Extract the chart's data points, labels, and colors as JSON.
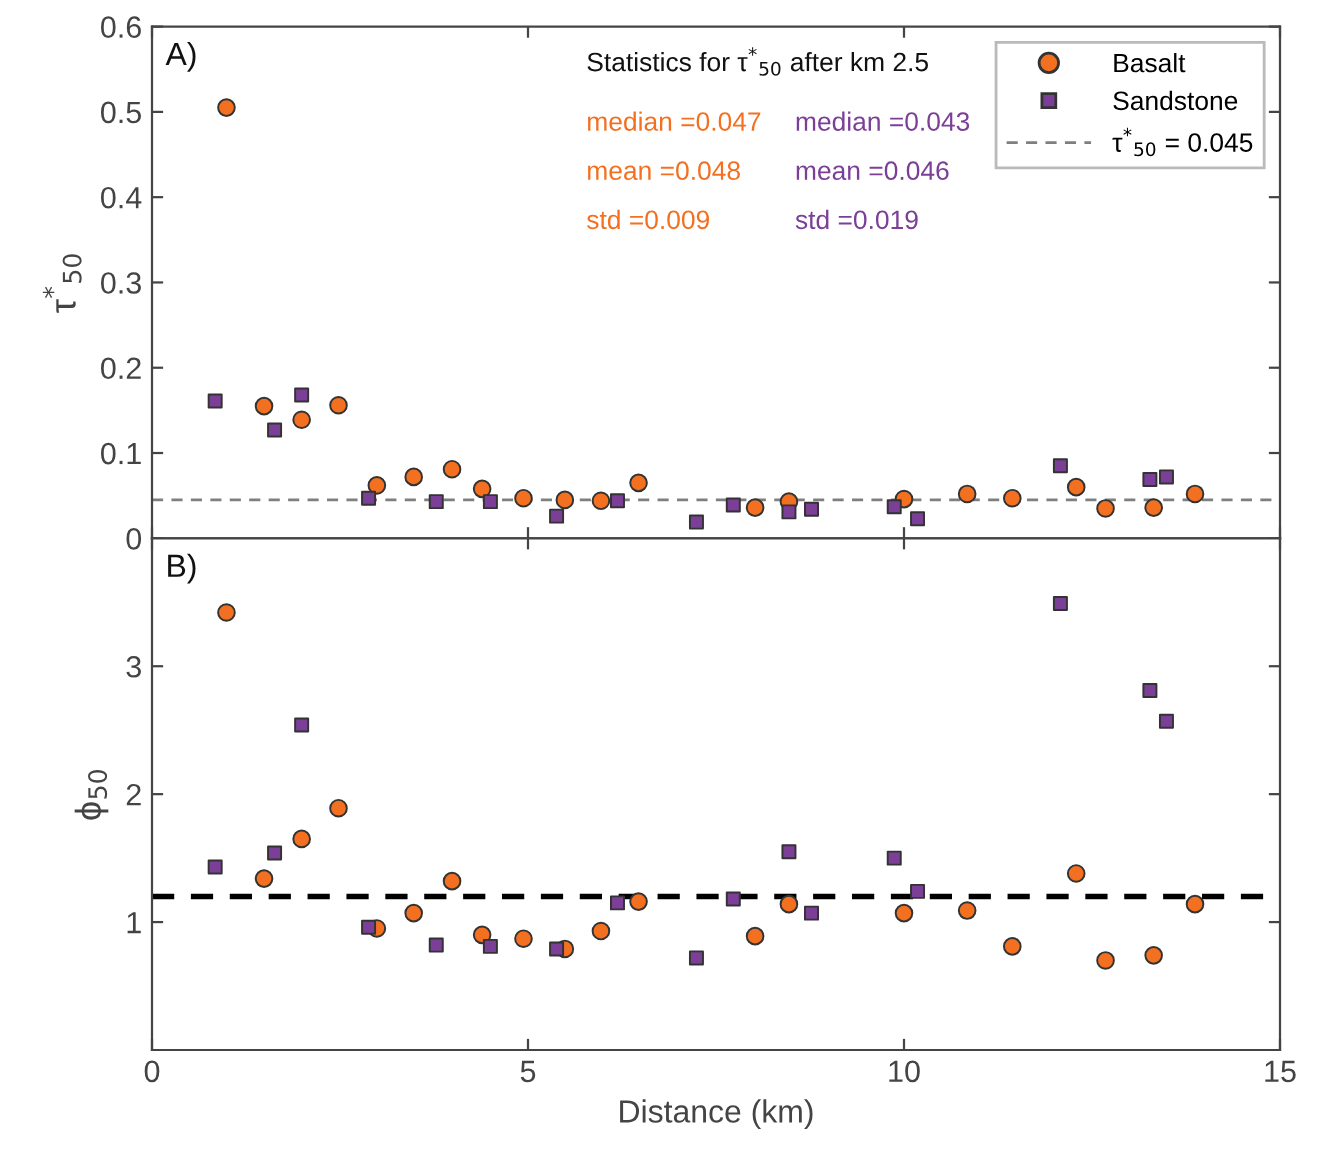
{
  "chart_data": [
    {
      "type": "scatter",
      "ylabel": "τ$^{*}$$_{50}$",
      "xlim": [
        0,
        15
      ],
      "xticks": [
        {
          "value": 0,
          "label": null
        },
        {
          "value": 5,
          "label": null
        },
        {
          "value": 10,
          "label": null
        },
        {
          "value": 15,
          "label": null
        }
      ],
      "ylim": [
        0,
        0.6
      ],
      "yticks": [
        0,
        0.1,
        0.2,
        0.3,
        0.4,
        0.5,
        0.6
      ],
      "tick_labels": "y",
      "legend": "top right",
      "grid": false,
      "annotations": [
        "A)",
        "Statistics for τ$^{*}$$_{50}$ after km 2.5",
        "median =0.047",
        "mean =0.048",
        "std =0.009",
        "median =0.043",
        "mean =0.046",
        "std =0.019"
      ],
      "ref_lines": [
        {
          "axis": "y",
          "value": 0.045,
          "label": "τ$^{*}$$_{50}$ = 0.045",
          "color": "#7f7f7f",
          "line_style": "dashed"
        }
      ],
      "series": [
        {
          "name": "Basalt",
          "color": "#f37021",
          "marker": "circle",
          "x": [
            0.99,
            1.49,
            1.99,
            2.48,
            2.99,
            3.48,
            3.99,
            4.39,
            4.94,
            5.49,
            5.97,
            6.47,
            8.02,
            8.47,
            10.0,
            10.84,
            11.44,
            12.29,
            12.68,
            13.32,
            13.87
          ],
          "values": [
            0.505,
            0.155,
            0.139,
            0.156,
            0.062,
            0.072,
            0.081,
            0.058,
            0.047,
            0.045,
            0.044,
            0.065,
            0.036,
            0.043,
            0.046,
            0.052,
            0.047,
            0.06,
            0.035,
            0.036,
            0.052
          ]
        },
        {
          "name": "Sandstone",
          "color": "#7b3f98",
          "marker": "square",
          "x": [
            0.84,
            1.63,
            1.99,
            2.88,
            3.78,
            4.5,
            5.38,
            6.19,
            7.24,
            7.73,
            8.47,
            8.77,
            9.87,
            10.18,
            12.08,
            13.27,
            13.49
          ],
          "values": [
            0.161,
            0.127,
            0.168,
            0.047,
            0.043,
            0.043,
            0.026,
            0.044,
            0.019,
            0.039,
            0.031,
            0.034,
            0.037,
            0.023,
            0.085,
            0.069,
            0.072
          ]
        }
      ]
    },
    {
      "type": "scatter",
      "xlabel": "Distance (km)",
      "ylabel": "ϕ$_{50}$",
      "xlim": [
        0,
        15
      ],
      "xticks": [
        0,
        5,
        10,
        15
      ],
      "ylim": [
        0,
        4
      ],
      "yticks": [
        1,
        2,
        3
      ],
      "legend": false,
      "grid": false,
      "annotations": [
        "B)"
      ],
      "ref_lines": [
        {
          "axis": "y",
          "value": 1.2,
          "color": "#000000",
          "line_style": "dashed"
        }
      ],
      "series": [
        {
          "color": "#f37021",
          "marker": "circle",
          "x": [
            0.99,
            1.49,
            1.99,
            2.48,
            2.99,
            3.48,
            3.99,
            4.39,
            4.94,
            5.49,
            5.97,
            6.47,
            8.02,
            8.47,
            10.0,
            10.84,
            11.44,
            12.29,
            12.68,
            13.32,
            13.87
          ],
          "values": [
            3.42,
            1.34,
            1.65,
            1.89,
            0.95,
            1.07,
            1.32,
            0.9,
            0.87,
            0.79,
            0.93,
            1.16,
            0.89,
            1.14,
            1.07,
            1.09,
            0.81,
            1.38,
            0.7,
            0.74,
            1.14
          ]
        },
        {
          "color": "#7b3f98",
          "marker": "square",
          "x": [
            0.84,
            1.63,
            1.99,
            2.88,
            3.78,
            4.5,
            5.38,
            6.19,
            7.24,
            7.73,
            8.47,
            8.77,
            9.87,
            10.18,
            12.08,
            13.27,
            13.49
          ],
          "values": [
            1.43,
            1.54,
            2.54,
            0.96,
            0.82,
            0.81,
            0.79,
            1.15,
            0.72,
            1.18,
            1.55,
            1.07,
            1.5,
            1.24,
            3.49,
            2.81,
            2.57
          ]
        }
      ]
    }
  ]
}
